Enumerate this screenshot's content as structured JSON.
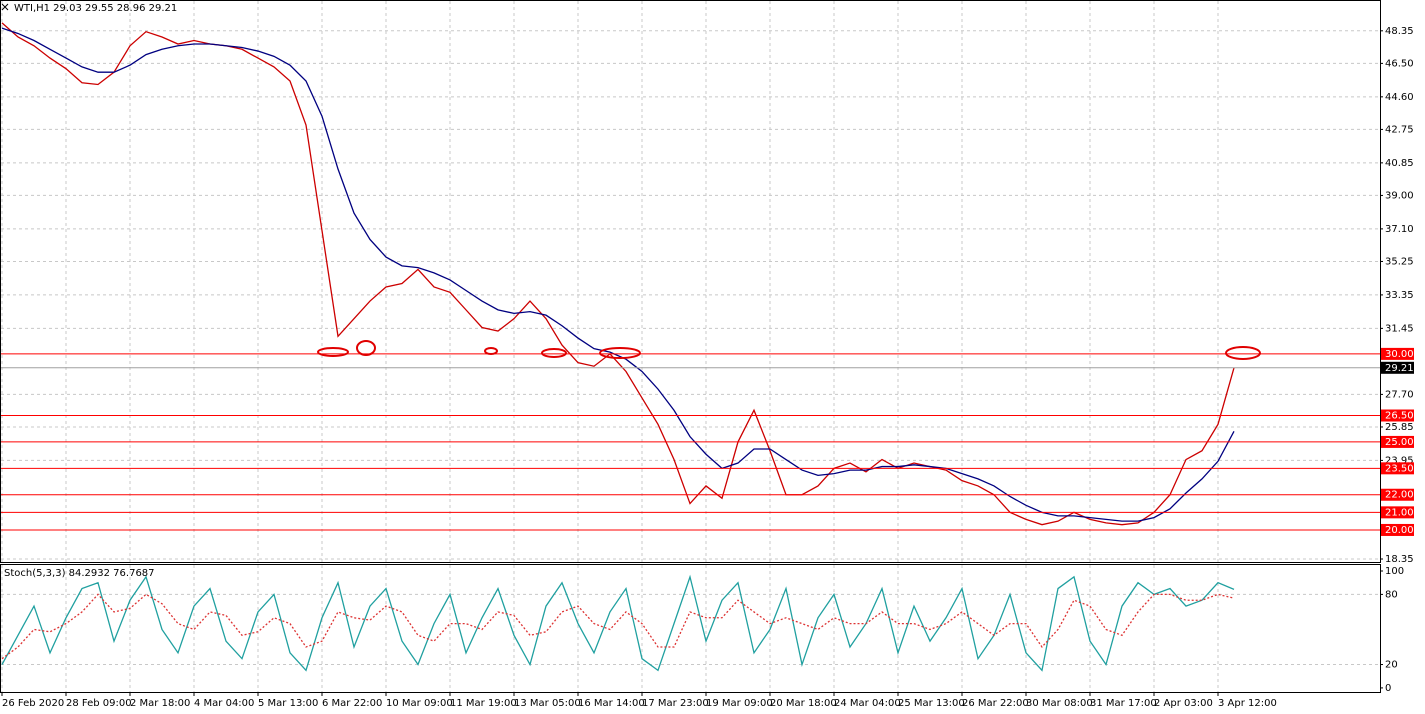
{
  "chart_data": [
    {
      "type": "line",
      "title": "WTI,H1  29.03 29.55 28.96 29.21",
      "categories": [
        "26 Feb 2020",
        null,
        null,
        null,
        "28 Feb 09:00",
        null,
        null,
        null,
        "2 Mar 18:00",
        null,
        null,
        null,
        "4 Mar 04:00",
        null,
        null,
        null,
        "5 Mar 13:00",
        null,
        null,
        null,
        "6 Mar 22:00",
        null,
        null,
        null,
        "10 Mar 09:00",
        null,
        null,
        null,
        "11 Mar 19:00",
        null,
        null,
        null,
        "13 Mar 05:00",
        null,
        null,
        null,
        "16 Mar 14:00",
        null,
        null,
        null,
        "17 Mar 23:00",
        null,
        null,
        null,
        "19 Mar 09:00",
        null,
        null,
        null,
        "20 Mar 18:00",
        null,
        null,
        null,
        "24 Mar 04:00",
        null,
        null,
        null,
        "25 Mar 13:00",
        null,
        null,
        null,
        "26 Mar 22:00",
        null,
        null,
        null,
        "30 Mar 08:00",
        null,
        null,
        null,
        "31 Mar 17:00",
        null,
        null,
        null,
        "2 Apr 03:00",
        null,
        null,
        null,
        "3 Apr 12:00",
        null
      ],
      "series": [
        {
          "color": "#cc0000",
          "values": [
            48.8,
            48.0,
            47.5,
            46.8,
            46.2,
            45.4,
            45.3,
            46.0,
            47.5,
            48.3,
            48.0,
            47.6,
            47.8,
            47.6,
            47.5,
            47.3,
            46.8,
            46.3,
            45.5,
            43.0,
            37.0,
            31.0,
            32.0,
            33.0,
            33.8,
            34.0,
            34.8,
            33.8,
            33.5,
            32.5,
            31.5,
            31.3,
            32.0,
            33.0,
            32.0,
            30.5,
            29.5,
            29.3,
            30.0,
            29.0,
            27.5,
            26.0,
            24.0,
            21.5,
            22.5,
            21.8,
            25.0,
            26.8,
            24.5,
            22.0,
            22.0,
            22.5,
            23.5,
            23.8,
            23.3,
            24.0,
            23.5,
            23.8,
            23.6,
            23.4,
            22.8,
            22.5,
            22.0,
            21.0,
            20.6,
            20.3,
            20.5,
            21.0,
            20.6,
            20.4,
            20.3,
            20.4,
            21.0,
            22.0,
            24.0,
            24.5,
            26.0,
            29.21
          ]
        },
        {
          "color": "#000080",
          "values": [
            48.5,
            48.2,
            47.8,
            47.3,
            46.8,
            46.3,
            46.0,
            46.0,
            46.4,
            47.0,
            47.3,
            47.5,
            47.6,
            47.6,
            47.5,
            47.4,
            47.2,
            46.9,
            46.4,
            45.5,
            43.5,
            40.5,
            38.0,
            36.5,
            35.5,
            35.0,
            34.9,
            34.6,
            34.2,
            33.6,
            33.0,
            32.5,
            32.3,
            32.4,
            32.2,
            31.6,
            30.9,
            30.3,
            30.1,
            29.7,
            29.0,
            28.0,
            26.8,
            25.3,
            24.3,
            23.5,
            23.8,
            24.6,
            24.6,
            24.0,
            23.4,
            23.1,
            23.2,
            23.4,
            23.4,
            23.6,
            23.6,
            23.7,
            23.6,
            23.5,
            23.2,
            22.9,
            22.5,
            21.9,
            21.4,
            21.0,
            20.8,
            20.8,
            20.7,
            20.6,
            20.5,
            20.5,
            20.7,
            21.2,
            22.1,
            22.9,
            23.9,
            25.6
          ]
        }
      ],
      "ylim": [
        18.18,
        50.1
      ],
      "yticks": [
        48.35,
        {
          "value": 46.5,
          "label": "46.50"
        },
        {
          "value": 44.6,
          "label": "44.60"
        },
        42.75,
        40.85,
        {
          "value": 39.0,
          "label": "39.00"
        },
        {
          "value": 37.1,
          "label": "37.10"
        },
        35.25,
        33.35,
        31.45,
        {
          "value": 27.7,
          "label": "27.70"
        },
        25.85,
        23.95,
        18.35
      ],
      "hlines": [
        {
          "value": 30,
          "label": "30.00"
        },
        {
          "value": 26.5,
          "label": "26.50"
        },
        {
          "value": 25,
          "label": "25.00"
        },
        {
          "value": 23.5,
          "label": "23.50"
        },
        {
          "value": 22,
          "label": "22.00"
        },
        {
          "value": 21,
          "label": "21.00"
        },
        {
          "value": 20,
          "label": "20.00"
        }
      ],
      "hline_color": "#ff0000",
      "current": 29.21,
      "grid": true
    },
    {
      "type": "line",
      "title": "Stoch(5,3,3) 84.2932 76.7687",
      "series": [
        {
          "color": "#20a0a0",
          "values": [
            20,
            45,
            70,
            30,
            60,
            85,
            90,
            40,
            75,
            95,
            50,
            30,
            70,
            85,
            40,
            25,
            65,
            80,
            30,
            15,
            60,
            90,
            35,
            70,
            85,
            40,
            20,
            55,
            80,
            30,
            60,
            85,
            45,
            20,
            70,
            90,
            55,
            30,
            65,
            85,
            25,
            15,
            55,
            95,
            40,
            75,
            90,
            30,
            50,
            85,
            20,
            60,
            80,
            35,
            55,
            85,
            30,
            70,
            40,
            60,
            85,
            25,
            45,
            80,
            30,
            15,
            85,
            95,
            40,
            20,
            70,
            90,
            80,
            85,
            70,
            75,
            90,
            84.29
          ]
        },
        {
          "color": "#dd3333",
          "dashed": true,
          "values": [
            25,
            35,
            50,
            48,
            55,
            65,
            80,
            65,
            68,
            80,
            72,
            55,
            50,
            65,
            62,
            45,
            48,
            60,
            55,
            35,
            40,
            65,
            60,
            58,
            70,
            65,
            45,
            40,
            55,
            55,
            50,
            65,
            62,
            45,
            48,
            65,
            70,
            55,
            50,
            65,
            55,
            35,
            35,
            65,
            60,
            60,
            75,
            65,
            55,
            60,
            55,
            50,
            60,
            55,
            55,
            65,
            55,
            55,
            50,
            55,
            65,
            55,
            45,
            55,
            55,
            35,
            50,
            75,
            70,
            50,
            45,
            65,
            80,
            80,
            75,
            75,
            80,
            76.77
          ]
        }
      ],
      "ylim": [
        -3.5,
        106
      ],
      "yticks": [
        100,
        80,
        20,
        0
      ],
      "levels": [
        80,
        20
      ]
    }
  ]
}
